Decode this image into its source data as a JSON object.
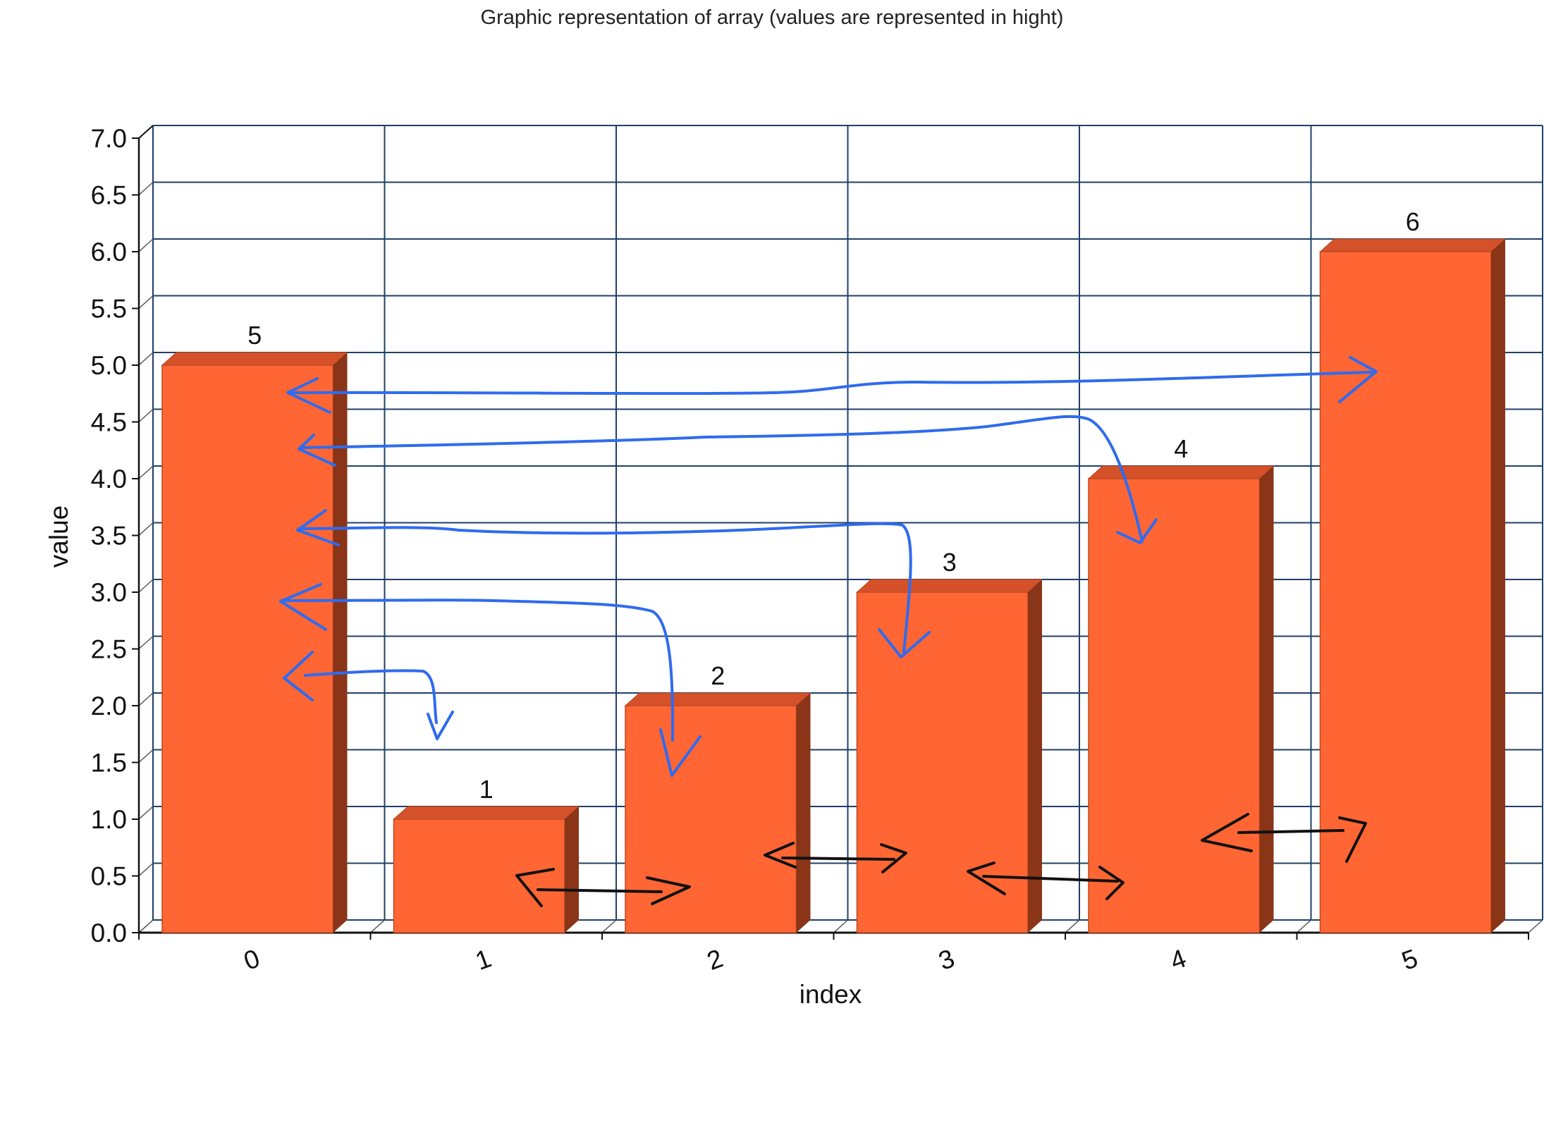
{
  "chart_data": {
    "type": "bar",
    "title": "Graphic representation of array (values are represented in hight)",
    "xlabel": "index",
    "ylabel": "value",
    "categories": [
      "0",
      "1",
      "2",
      "3",
      "4",
      "5"
    ],
    "values": [
      5,
      1,
      2,
      3,
      4,
      6
    ],
    "data_labels": [
      "5",
      "1",
      "2",
      "3",
      "4",
      "6"
    ],
    "ylim": [
      0,
      7
    ],
    "yticks": [
      "0.0",
      "0.5",
      "1.0",
      "1.5",
      "2.0",
      "2.5",
      "3.0",
      "3.5",
      "4.0",
      "4.5",
      "5.0",
      "5.5",
      "6.0",
      "6.5",
      "7.0"
    ],
    "grid": true,
    "legend": "none",
    "colors": {
      "bar_front": "#ff6633",
      "bar_top": "#d4512a",
      "bar_side": "#8a3418",
      "grid": "#1f3f66",
      "annotation_blue": "#2f6bef",
      "annotation_black": "#111111"
    }
  }
}
